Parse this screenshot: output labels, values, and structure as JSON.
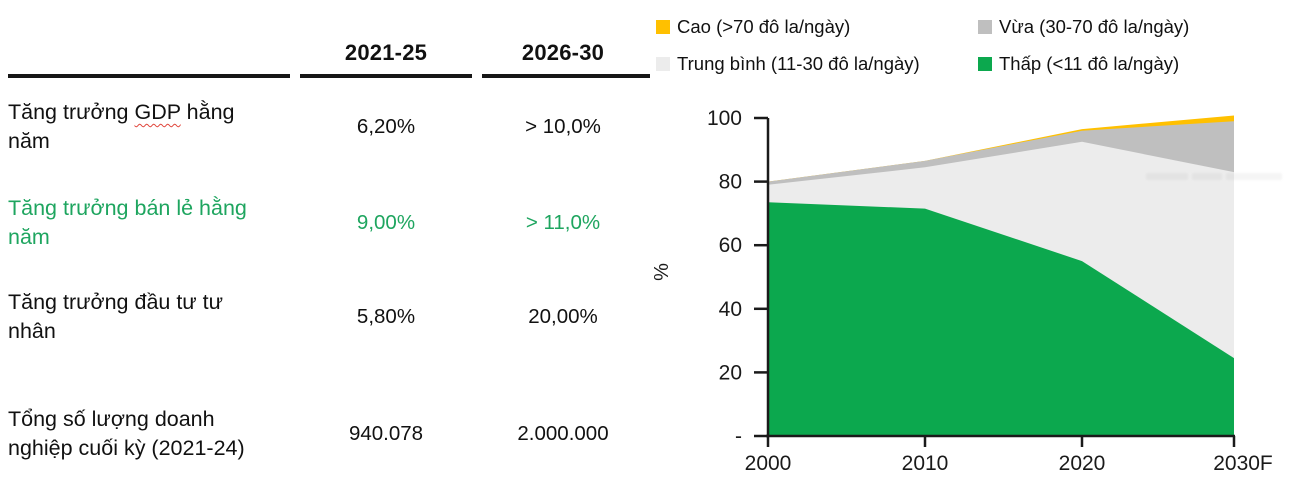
{
  "page": {
    "background": "#ffffff"
  },
  "table": {
    "col_headers": [
      "2021-25",
      "2026-30"
    ],
    "highlight_color": "#1EA55F",
    "rows": [
      {
        "label": "Tăng trưởng GDP hằng năm",
        "label_pre": "Tăng trưởng ",
        "label_mark": "GDP",
        "label_post": " hằng năm",
        "values": [
          "6,20%",
          "> 10,0%"
        ]
      },
      {
        "label": "Tăng trưởng bán lẻ hằng năm",
        "values": [
          "9,00%",
          "> 11,0%"
        ],
        "highlight": true
      },
      {
        "label": "Tăng trưởng đầu tư tư nhân",
        "values": [
          "5,80%",
          "20,00%"
        ]
      },
      {
        "label": "Tổng số lượng doanh nghiệp cuối kỳ (2021-24)",
        "values": [
          "940.078",
          "2.000.000"
        ]
      }
    ]
  },
  "chart": {
    "legend": [
      {
        "label": "Cao (>70 đô la/ngày)",
        "color": "#FFC000"
      },
      {
        "label": "Vừa (30-70 đô la/ngày)",
        "color": "#BFBFBF"
      },
      {
        "label": "Trung bình (11-30 đô la/ngày)",
        "color": "#ECECEC"
      },
      {
        "label": "Thấp (<11 đô la/ngày)",
        "color": "#0CA84E"
      }
    ]
  },
  "chart_data": {
    "type": "area",
    "stacked": true,
    "title": "",
    "xlabel": "",
    "ylabel": "%",
    "ylim": [
      0,
      100
    ],
    "grid": false,
    "legend_position": "top",
    "x": [
      "2000",
      "2010",
      "2020",
      "2030F"
    ],
    "yticks": [
      {
        "label": "100",
        "value": 100
      },
      {
        "label": "80",
        "value": 80
      },
      {
        "label": "60",
        "value": 60
      },
      {
        "label": "40",
        "value": 40
      },
      {
        "label": "20",
        "value": 20
      },
      {
        "label": "-",
        "value": 0
      }
    ],
    "series": [
      {
        "name": "Thấp (<11 đô la/ngày)",
        "color": "#0CA84E",
        "values": [
          73.5,
          71.5,
          55,
          24.5
        ]
      },
      {
        "name": "Trung bình (11-30 đô la/ngày)",
        "color": "#ECECEC",
        "values": [
          5.5,
          13,
          37.5,
          58.5
        ]
      },
      {
        "name": "Vừa (30-70 đô la/ngày)",
        "color": "#BFBFBF",
        "values": [
          1,
          2,
          3.5,
          16
        ]
      },
      {
        "name": "Cao (>70 đô la/ngày)",
        "color": "#FFC000",
        "values": [
          0,
          0,
          0.5,
          1.8
        ]
      }
    ]
  }
}
